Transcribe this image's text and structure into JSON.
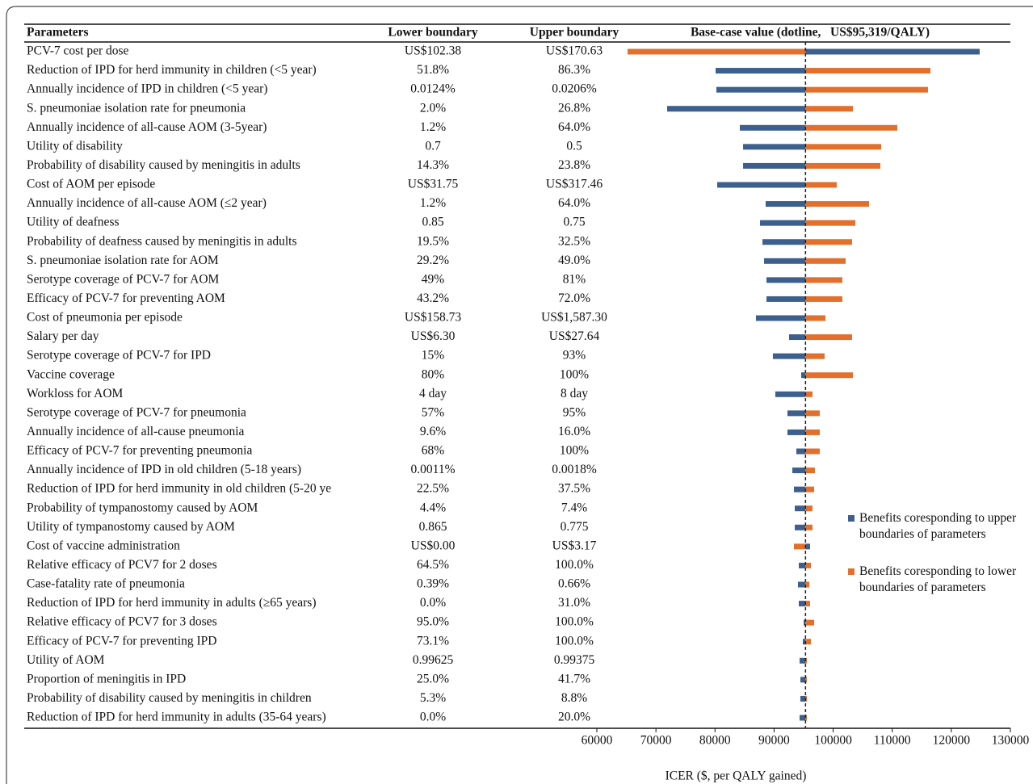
{
  "chart_data": {
    "type": "tornado",
    "columns": [
      "Parameters",
      "Lower boundary",
      "Upper boundary",
      "Base-case value (dotline,   US$95,319/QALY)"
    ],
    "categories": [
      "PCV-7 cost per dose",
      "Reduction of IPD for herd immunity in children (<5 year)",
      "Annually incidence of IPD in children (<5 year)",
      "S. pneumoniae isolation rate for pneumonia",
      "Annually incidence of all-cause AOM (3-5year)",
      "Utility of disability",
      "Probability of disability caused by meningitis in adults",
      "Cost of AOM per episode",
      "Annually incidence of all-cause AOM (≤2 year)",
      "Utility of deafness",
      "Probability of deafness caused by meningitis in adults",
      "S. pneumoniae isolation rate for AOM",
      "Serotype coverage of PCV-7 for AOM",
      "Efficacy of PCV-7 for preventing AOM",
      "Cost of  pneumonia per episode",
      "Salary per day",
      "Serotype coverage of PCV-7 for IPD",
      "Vaccine coverage",
      "Workloss for AOM",
      "Serotype coverage of PCV-7 for pneumonia",
      "Annually incidence of all-cause pneumonia",
      "Efficacy of PCV-7 for preventing pneumonia",
      "Annually incidence of IPD in old children (5-18 years)",
      "Reduction of IPD for herd immunity in old children (5-20 ye",
      "Probability of tympanostomy caused by AOM",
      "Utility of tympanostomy caused by AOM",
      "Cost of vaccine administration",
      "Relative efficacy of PCV7 for 2 doses",
      "Case-fatality rate of pneumonia",
      "Reduction of IPD for herd immunity in adults (≥65 years)",
      "Relative efficacy of PCV7 for 3 doses",
      "Efficacy of PCV-7 for preventing IPD",
      "Utility of AOM",
      "Proportion of meningitis in IPD",
      "Probability of disability caused by meningitis in children",
      "Reduction of IPD for herd immunity in adults (35-64 years)"
    ],
    "lower_boundary": [
      "US$102.38",
      "51.8%",
      "0.0124%",
      "2.0%",
      "1.2%",
      "0.7",
      "14.3%",
      "US$31.75",
      "1.2%",
      "0.85",
      "19.5%",
      "29.2%",
      "49%",
      "43.2%",
      "US$158.73",
      "US$6.30",
      "15%",
      "80%",
      "4 day",
      "57%",
      "9.6%",
      "68%",
      "0.0011%",
      "22.5%",
      "4.4%",
      "0.865",
      "US$0.00",
      "64.5%",
      "0.39%",
      "0.0%",
      "95.0%",
      "73.1%",
      "0.99625",
      "25.0%",
      "5.3%",
      "0.0%"
    ],
    "upper_boundary": [
      "US$170.63",
      "86.3%",
      "0.0206%",
      "26.8%",
      "64.0%",
      "0.5",
      "23.8%",
      "US$317.46",
      "64.0%",
      "0.75",
      "32.5%",
      "49.0%",
      "81%",
      "72.0%",
      "US$1,587.30",
      "US$27.64",
      "93%",
      "100%",
      "8 day",
      "95%",
      "16.0%",
      "100%",
      "0.0018%",
      "37.5%",
      "7.4%",
      "0.775",
      "US$3.17",
      "100.0%",
      "0.66%",
      "31.0%",
      "100.0%",
      "100.0%",
      "0.99375",
      "41.7%",
      "8.8%",
      "20.0%"
    ],
    "base_value": 95319,
    "series": [
      {
        "name": "Benefits coresponding to upper boundaries of parameters",
        "color": "#3d5f8e",
        "values": [
          124800,
          80100,
          80230,
          71900,
          84200,
          84750,
          84750,
          80370,
          88570,
          87620,
          88030,
          88300,
          88710,
          88710,
          86930,
          92540,
          89800,
          94590,
          90210,
          92260,
          92260,
          93770,
          93090,
          93360,
          93500,
          93500,
          96090,
          94180,
          94040,
          94180,
          95000,
          94860,
          94320,
          94450,
          94450,
          94320
        ]
      },
      {
        "name": "Benefits coresponding to lower boundaries of parameters",
        "color": "#e2702c",
        "values": [
          65200,
          116460,
          116050,
          103340,
          110860,
          108130,
          107990,
          100600,
          106070,
          103750,
          103200,
          102110,
          101560,
          101560,
          98690,
          103200,
          98550,
          103340,
          96500,
          97730,
          97730,
          97730,
          96910,
          96780,
          96500,
          96500,
          93360,
          96230,
          95960,
          96090,
          96780,
          96230,
          95550,
          95550,
          95550,
          95550
        ]
      }
    ],
    "xlim": [
      60000,
      130000
    ],
    "xticks": [
      60000,
      70000,
      80000,
      90000,
      100000,
      110000,
      120000,
      130000
    ],
    "xlabel": "ICER ($, per QALY gained)"
  }
}
